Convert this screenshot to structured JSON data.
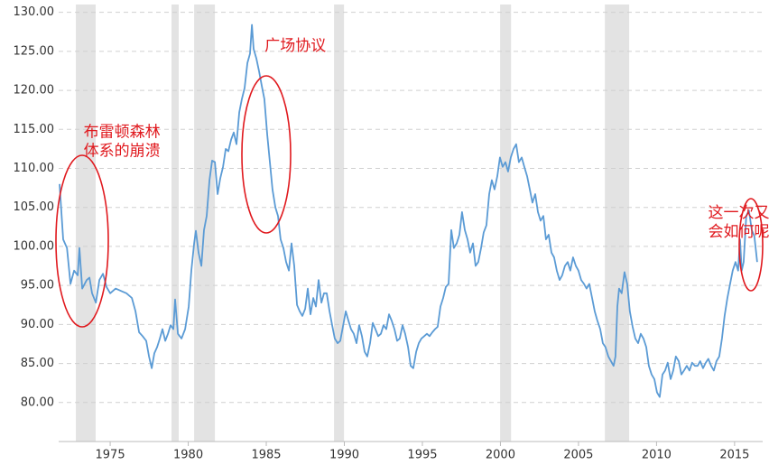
{
  "chart_data": {
    "type": "line",
    "color": "#5b9bd5",
    "shade_color": "#e3e3e3",
    "grid": true,
    "xlim": [
      1971.7,
      2016.8
    ],
    "ylim": [
      75,
      131
    ],
    "xticks": [
      1975,
      1980,
      1985,
      1990,
      1995,
      2000,
      2005,
      2010,
      2015
    ],
    "yticks": [
      {
        "value": 80,
        "label": "80.00"
      },
      {
        "value": 85,
        "label": "85.00"
      },
      {
        "value": 90,
        "label": "90.00"
      },
      {
        "value": 95,
        "label": "95.00"
      },
      {
        "value": 100,
        "label": "100.00"
      },
      {
        "value": 105,
        "label": "105.00"
      },
      {
        "value": 110,
        "label": "110.00"
      },
      {
        "value": 115,
        "label": "115.00"
      },
      {
        "value": 120,
        "label": "120.00"
      },
      {
        "value": 125,
        "label": "125.00"
      },
      {
        "value": 130,
        "label": "130.00"
      }
    ],
    "shaded_ranges": [
      [
        1972.8,
        1974.07
      ],
      [
        1978.93,
        1979.39
      ],
      [
        1980.38,
        1981.71
      ],
      [
        1989.34,
        1989.98
      ],
      [
        1999.98,
        2000.68
      ],
      [
        2006.69,
        2008.25
      ]
    ],
    "annotations": [
      {
        "lines": [
          "布雷顿森林",
          "体系的崩溃"
        ],
        "x": 1973.3,
        "y": 114.6
      },
      {
        "lines": [
          "广场协议"
        ],
        "x": 1984.9,
        "y": 125.7
      },
      {
        "lines": [
          "这一次又",
          "会如何呢？"
        ],
        "x": 2013.3,
        "y": 104.3
      }
    ],
    "x": [
      1971.76,
      1971.99,
      1972.23,
      1972.46,
      1972.69,
      1972.92,
      1973.03,
      1973.21,
      1973.5,
      1973.67,
      1973.84,
      1974.08,
      1974.31,
      1974.54,
      1974.77,
      1975.0,
      1975.35,
      1975.69,
      1976.04,
      1976.39,
      1976.62,
      1976.85,
      1977.08,
      1977.31,
      1977.49,
      1977.66,
      1977.83,
      1978.01,
      1978.18,
      1978.35,
      1978.53,
      1978.7,
      1978.87,
      1979.05,
      1979.16,
      1979.34,
      1979.57,
      1979.8,
      1980.03,
      1980.2,
      1980.38,
      1980.49,
      1980.66,
      1980.84,
      1981.01,
      1981.18,
      1981.36,
      1981.53,
      1981.71,
      1981.88,
      1982.05,
      1982.23,
      1982.4,
      1982.57,
      1982.75,
      1982.92,
      1983.09,
      1983.27,
      1983.44,
      1983.61,
      1983.79,
      1983.96,
      1984.08,
      1984.19,
      1984.36,
      1984.54,
      1984.71,
      1984.88,
      1985.06,
      1985.23,
      1985.4,
      1985.58,
      1985.75,
      1985.92,
      1986.1,
      1986.27,
      1986.45,
      1986.62,
      1986.79,
      1986.97,
      1987.14,
      1987.31,
      1987.49,
      1987.66,
      1987.83,
      1988.01,
      1988.18,
      1988.35,
      1988.53,
      1988.7,
      1988.87,
      1989.05,
      1989.22,
      1989.39,
      1989.57,
      1989.74,
      1989.91,
      1990.09,
      1990.26,
      1990.43,
      1990.61,
      1990.78,
      1990.95,
      1991.13,
      1991.3,
      1991.47,
      1991.65,
      1991.82,
      1991.99,
      1992.17,
      1992.34,
      1992.51,
      1992.69,
      1992.86,
      1993.03,
      1993.21,
      1993.38,
      1993.55,
      1993.73,
      1993.9,
      1994.08,
      1994.25,
      1994.42,
      1994.6,
      1994.77,
      1994.94,
      1995.12,
      1995.29,
      1995.46,
      1995.64,
      1995.81,
      1995.98,
      1996.16,
      1996.33,
      1996.5,
      1996.68,
      1996.85,
      1997.02,
      1997.2,
      1997.37,
      1997.54,
      1997.72,
      1997.89,
      1998.06,
      1998.24,
      1998.41,
      1998.58,
      1998.76,
      1998.93,
      1999.1,
      1999.28,
      1999.45,
      1999.62,
      1999.8,
      1999.97,
      2000.14,
      2000.32,
      2000.49,
      2000.66,
      2000.84,
      2001.01,
      2001.18,
      2001.36,
      2001.53,
      2001.71,
      2001.88,
      2002.05,
      2002.23,
      2002.4,
      2002.57,
      2002.75,
      2002.92,
      2003.09,
      2003.27,
      2003.44,
      2003.61,
      2003.79,
      2003.96,
      2004.13,
      2004.31,
      2004.48,
      2004.65,
      2004.83,
      2005.0,
      2005.17,
      2005.35,
      2005.52,
      2005.69,
      2005.87,
      2006.04,
      2006.21,
      2006.39,
      2006.56,
      2006.73,
      2006.91,
      2007.08,
      2007.25,
      2007.37,
      2007.49,
      2007.6,
      2007.77,
      2007.95,
      2008.12,
      2008.29,
      2008.47,
      2008.64,
      2008.82,
      2008.99,
      2009.16,
      2009.34,
      2009.51,
      2009.68,
      2009.86,
      2010.03,
      2010.2,
      2010.38,
      2010.55,
      2010.72,
      2010.9,
      2011.07,
      2011.24,
      2011.42,
      2011.59,
      2011.76,
      2011.94,
      2012.11,
      2012.28,
      2012.46,
      2012.63,
      2012.8,
      2012.98,
      2013.15,
      2013.32,
      2013.5,
      2013.67,
      2013.84,
      2014.02,
      2014.19,
      2014.36,
      2014.54,
      2014.71,
      2014.88,
      2015.06,
      2015.23,
      2015.35,
      2015.46,
      2015.58,
      2015.75,
      2015.92,
      2016.1,
      2016.27,
      2016.45
    ],
    "values": [
      108.0,
      100.9,
      99.8,
      95.2,
      96.9,
      96.3,
      99.8,
      94.6,
      95.7,
      96.0,
      94.0,
      92.8,
      95.7,
      96.5,
      94.8,
      94.0,
      94.6,
      94.3,
      94.0,
      93.4,
      91.7,
      89.0,
      88.5,
      87.9,
      85.9,
      84.4,
      86.3,
      87.1,
      88.2,
      89.4,
      87.9,
      88.8,
      89.9,
      89.4,
      93.2,
      88.8,
      88.2,
      89.4,
      92.3,
      96.9,
      100.4,
      102.0,
      99.2,
      97.5,
      102.1,
      103.9,
      108.5,
      111.0,
      110.8,
      106.7,
      108.7,
      110.2,
      112.5,
      112.2,
      113.7,
      114.6,
      113.1,
      117.2,
      118.9,
      120.3,
      123.5,
      124.7,
      128.4,
      125.3,
      124.1,
      122.4,
      120.6,
      118.9,
      114.3,
      110.8,
      107.3,
      105.0,
      103.9,
      100.9,
      99.8,
      98.0,
      96.9,
      100.4,
      97.5,
      92.5,
      91.7,
      91.1,
      92.0,
      94.6,
      91.3,
      93.4,
      92.3,
      95.7,
      92.8,
      94.0,
      94.0,
      91.7,
      89.9,
      88.2,
      87.6,
      87.9,
      89.7,
      91.7,
      90.5,
      89.4,
      88.8,
      87.6,
      89.9,
      88.5,
      86.5,
      85.9,
      87.6,
      90.2,
      89.4,
      88.5,
      88.8,
      89.9,
      89.4,
      91.3,
      90.5,
      89.4,
      87.9,
      88.2,
      89.9,
      88.8,
      87.1,
      84.7,
      84.4,
      86.5,
      87.6,
      88.2,
      88.5,
      88.8,
      88.5,
      89.0,
      89.4,
      89.7,
      92.3,
      93.4,
      94.8,
      95.2,
      102.1,
      99.8,
      100.4,
      101.5,
      104.4,
      102.1,
      100.9,
      99.2,
      100.4,
      97.5,
      98.0,
      99.8,
      101.8,
      102.7,
      106.7,
      108.5,
      107.3,
      109.0,
      111.4,
      110.2,
      110.8,
      109.6,
      111.4,
      112.5,
      113.1,
      110.8,
      111.4,
      110.2,
      109.0,
      107.3,
      105.6,
      106.7,
      104.4,
      103.3,
      103.9,
      100.9,
      101.5,
      99.2,
      98.6,
      96.9,
      95.7,
      96.3,
      97.5,
      98.0,
      96.9,
      98.6,
      97.5,
      96.9,
      95.7,
      95.2,
      94.6,
      95.2,
      93.4,
      91.7,
      90.5,
      89.4,
      87.6,
      87.1,
      85.9,
      85.3,
      84.7,
      85.9,
      92.3,
      94.6,
      94.0,
      96.7,
      95.2,
      91.7,
      89.7,
      88.2,
      87.6,
      88.8,
      88.2,
      87.1,
      84.7,
      83.6,
      83.0,
      81.3,
      80.7,
      83.6,
      84.1,
      85.1,
      83.0,
      84.1,
      85.9,
      85.3,
      83.6,
      84.1,
      84.7,
      84.1,
      85.1,
      84.7,
      84.7,
      85.3,
      84.4,
      85.1,
      85.6,
      84.7,
      84.1,
      85.3,
      85.9,
      88.2,
      91.1,
      93.4,
      95.2,
      96.9,
      98.0,
      96.9,
      100.9,
      96.9,
      98.0,
      103.9,
      104.6,
      102.1,
      101.3,
      98.0
    ]
  }
}
